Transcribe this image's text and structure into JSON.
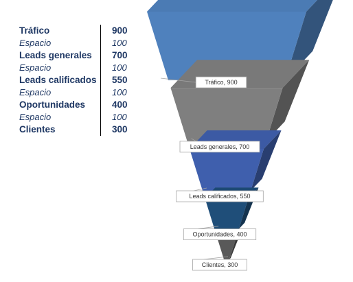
{
  "table": {
    "rows": [
      {
        "label": "Tráfico",
        "value": "900",
        "kind": "stage"
      },
      {
        "label": "Espacio",
        "value": "100",
        "kind": "gap"
      },
      {
        "label": "Leads generales",
        "value": "700",
        "kind": "stage"
      },
      {
        "label": "Espacio",
        "value": "100",
        "kind": "gap"
      },
      {
        "label": "Leads calificados",
        "value": "550",
        "kind": "stage"
      },
      {
        "label": "Espacio",
        "value": "100",
        "kind": "gap"
      },
      {
        "label": "Oportunidades",
        "value": "400",
        "kind": "stage"
      },
      {
        "label": "Espacio",
        "value": "100",
        "kind": "gap"
      },
      {
        "label": "Clientes",
        "value": "300",
        "kind": "stage"
      }
    ]
  },
  "chart_data": {
    "type": "funnel",
    "categories": [
      "Tráfico",
      "Leads generales",
      "Leads calificados",
      "Oportunidades",
      "Clientes"
    ],
    "values": [
      900,
      700,
      550,
      400,
      300
    ],
    "gap_values": [
      100,
      100,
      100,
      100
    ],
    "data_labels": [
      "Tráfico, 900",
      "Leads generales, 700",
      "Leads calificados, 550",
      "Oportunidades, 400",
      "Clientes, 300"
    ],
    "colors": [
      "#4f81bd",
      "#7f7f7f",
      "#3f5fad",
      "#1f4e79",
      "#595959"
    ],
    "legend": "none",
    "grid": false
  }
}
